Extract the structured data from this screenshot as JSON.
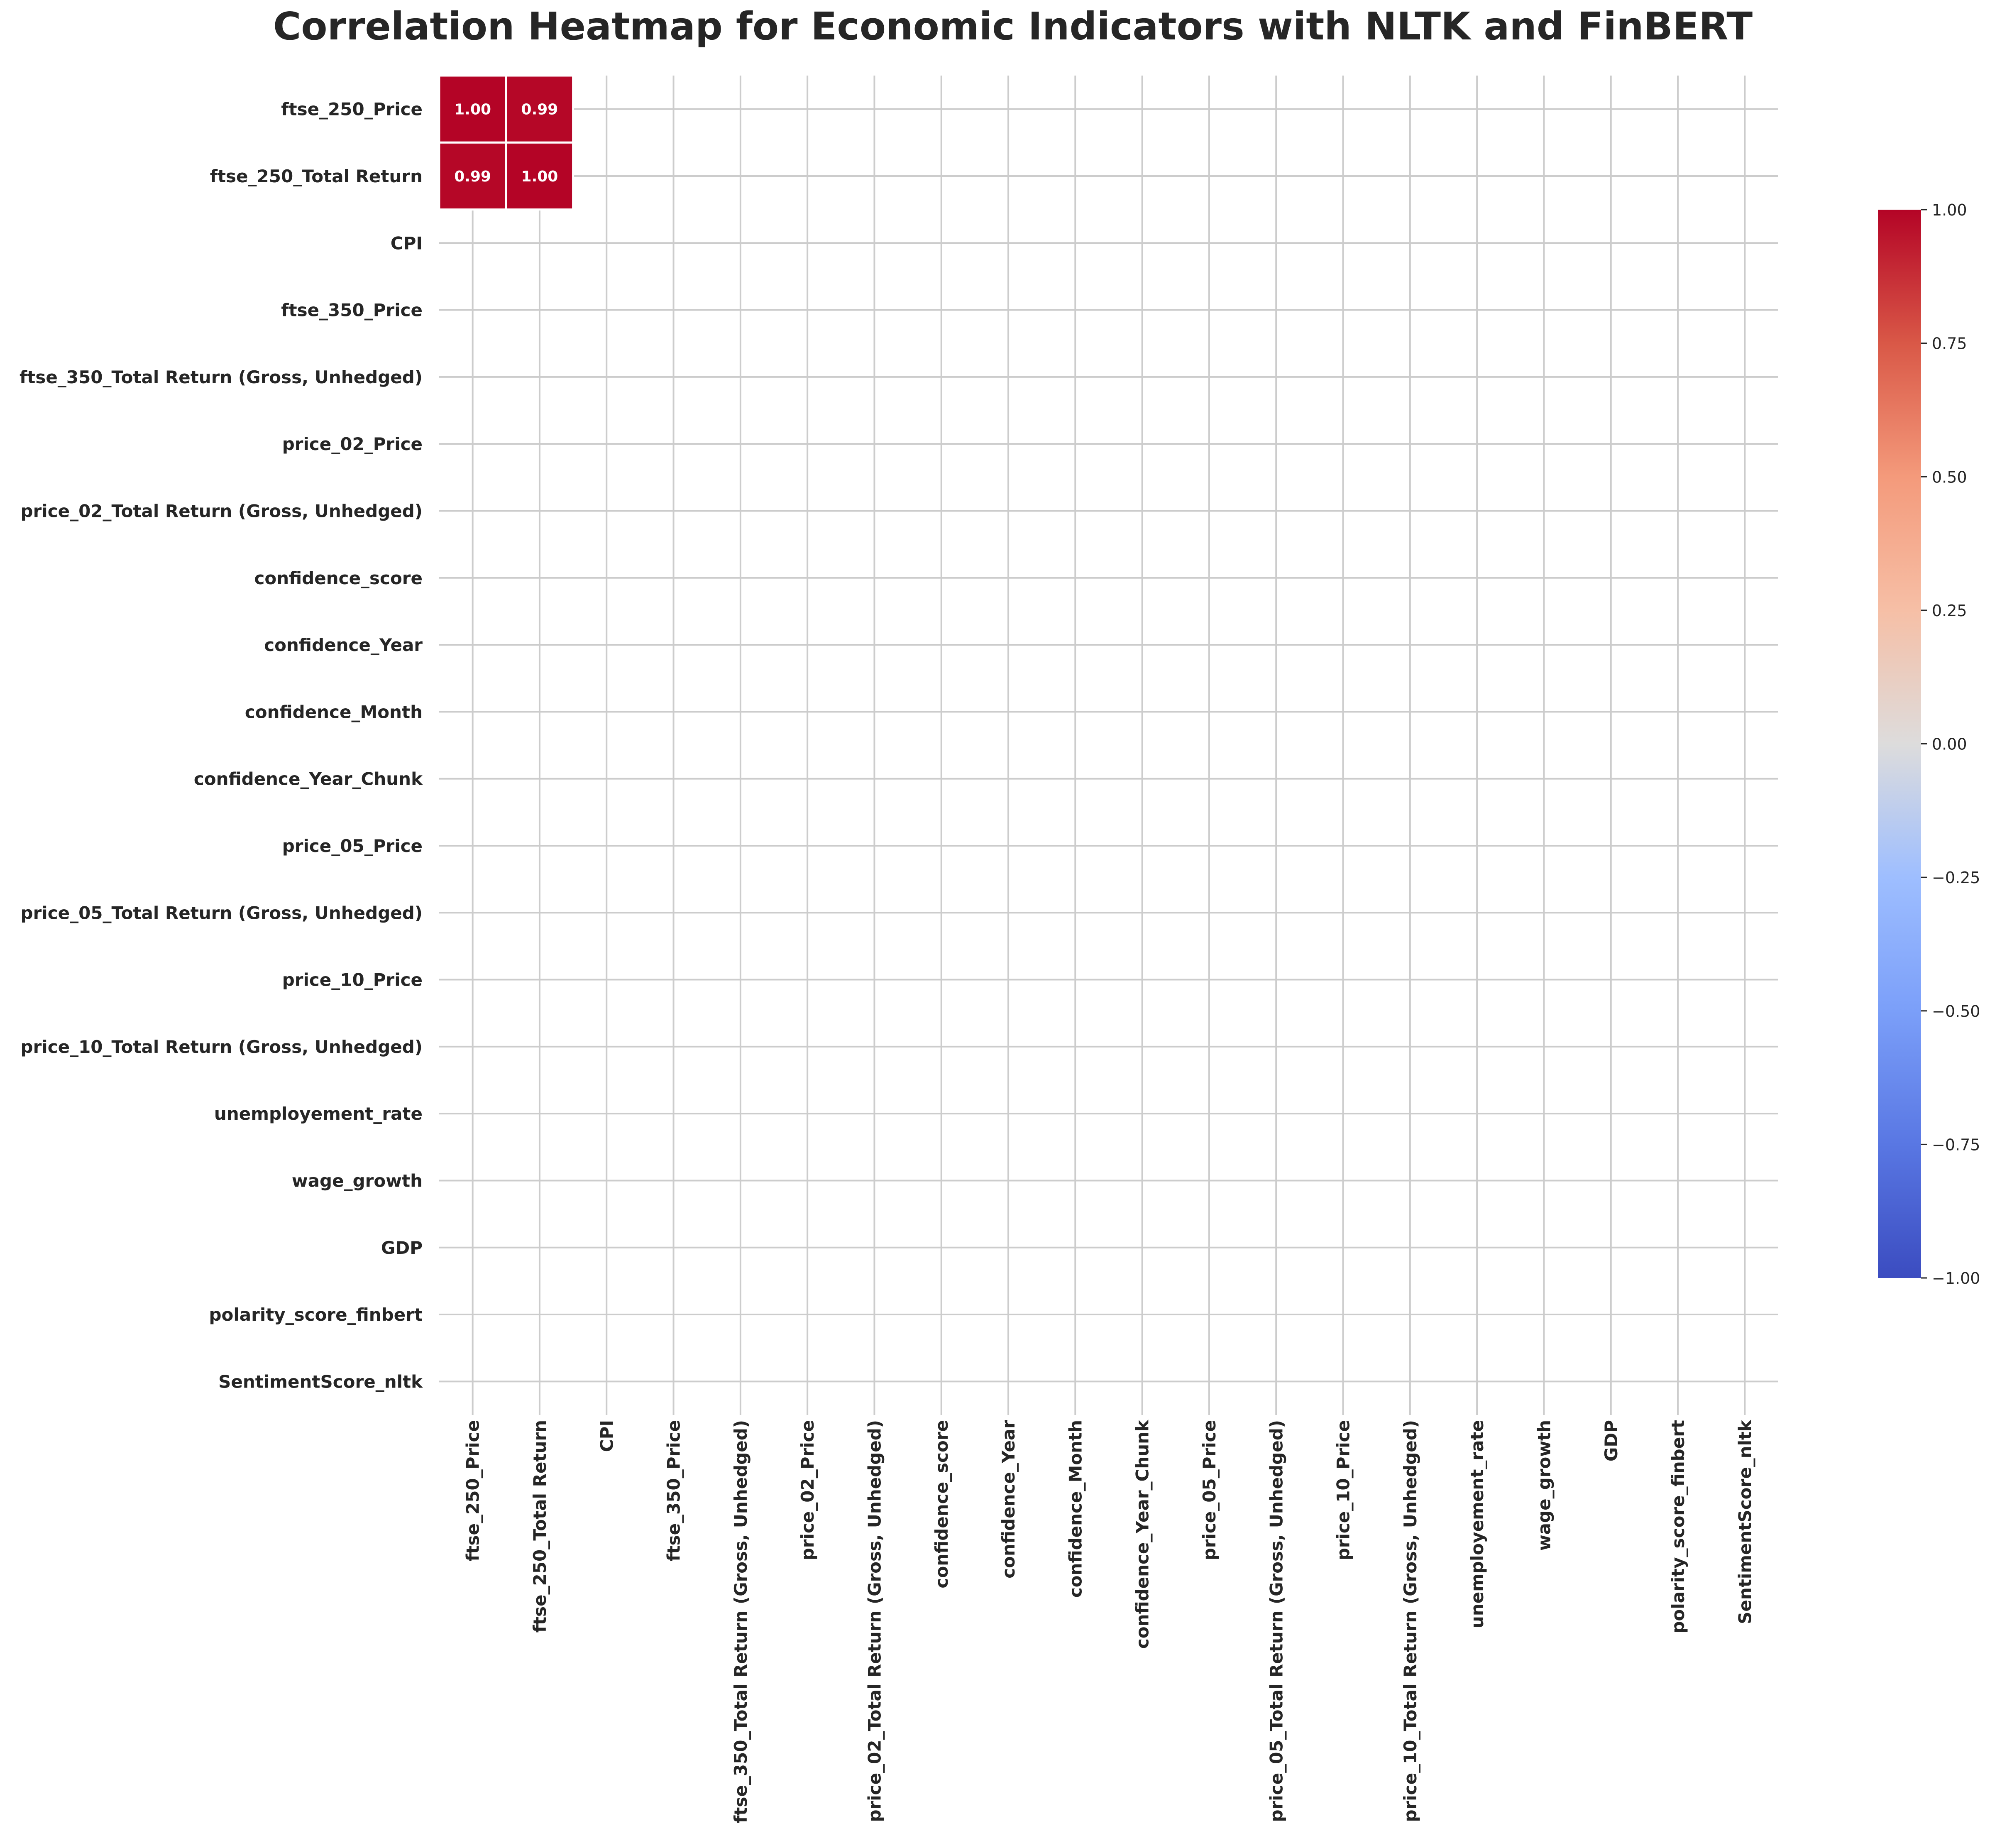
{
  "chart_data": {
    "type": "heatmap",
    "title": "Correlation Heatmap for Economic Indicators with NLTK and FinBERT",
    "rows": [
      "ftse_250_Price",
      "ftse_250_Total Return",
      "CPI",
      "ftse_350_Price",
      "ftse_350_Total Return (Gross, Unhedged)",
      "price_02_Price",
      "price_02_Total Return (Gross, Unhedged)",
      "confidence_score",
      "confidence_Year",
      "confidence_Month",
      "confidence_Year_Chunk",
      "price_05_Price",
      "price_05_Total Return (Gross, Unhedged)",
      "price_10_Price",
      "price_10_Total Return (Gross, Unhedged)",
      "unemployement_rate",
      "wage_growth",
      "GDP",
      "polarity_score_finbert",
      "SentimentScore_nltk"
    ],
    "columns": [
      "ftse_250_Price",
      "ftse_250_Total Return",
      "CPI",
      "ftse_350_Price",
      "ftse_350_Total Return (Gross, Unhedged)",
      "price_02_Price",
      "price_02_Total Return (Gross, Unhedged)",
      "confidence_score",
      "confidence_Year",
      "confidence_Month",
      "confidence_Year_Chunk",
      "price_05_Price",
      "price_05_Total Return (Gross, Unhedged)",
      "price_10_Price",
      "price_10_Total Return (Gross, Unhedged)",
      "unemployement_rate",
      "wage_growth",
      "GDP",
      "polarity_score_finbert",
      "SentimentScore_nltk"
    ],
    "cells": [
      {
        "row": 0,
        "col": 0,
        "value": 1.0,
        "label": "1.00"
      },
      {
        "row": 0,
        "col": 1,
        "value": 0.99,
        "label": "0.99"
      },
      {
        "row": 1,
        "col": 0,
        "value": 0.99,
        "label": "0.99"
      },
      {
        "row": 1,
        "col": 1,
        "value": 1.0,
        "label": "1.00"
      }
    ],
    "colormap": "coolwarm",
    "vmin": -1,
    "vmax": 1,
    "colorbar_ticks": [
      "1.00",
      "0.75",
      "0.50",
      "0.25",
      "0.00",
      "−0.25",
      "−0.50",
      "−0.75",
      "−1.00"
    ],
    "colors": {
      "cell_high": "#b40426",
      "grid_line": "#cccccc",
      "cell_border": "#ffffff",
      "annotation_text": "#ffffff"
    }
  }
}
